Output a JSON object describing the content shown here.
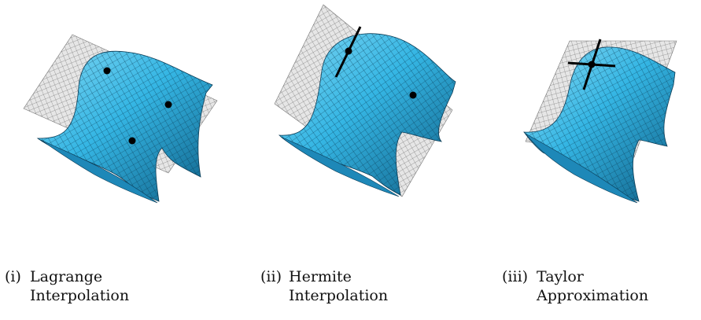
{
  "panels": [
    {
      "id": "lagrange",
      "label": "(i)",
      "title_line1": "Lagrange",
      "title_line2": "Interpolation",
      "markers": [
        "point",
        "point",
        "point"
      ]
    },
    {
      "id": "hermite",
      "label": "(ii)",
      "title_line1": "Hermite",
      "title_line2": "Interpolation",
      "markers": [
        "point-with-tangent-line",
        "point"
      ]
    },
    {
      "id": "taylor",
      "label": "(iii)",
      "title_line1": "Taylor",
      "title_line2": "Approximation",
      "markers": [
        "point-with-tangent-cross"
      ]
    }
  ],
  "colors": {
    "surface": "#35b6e4",
    "surface_dark": "#0f5f86",
    "plane": "#d9d9d9",
    "point": "#000000"
  }
}
